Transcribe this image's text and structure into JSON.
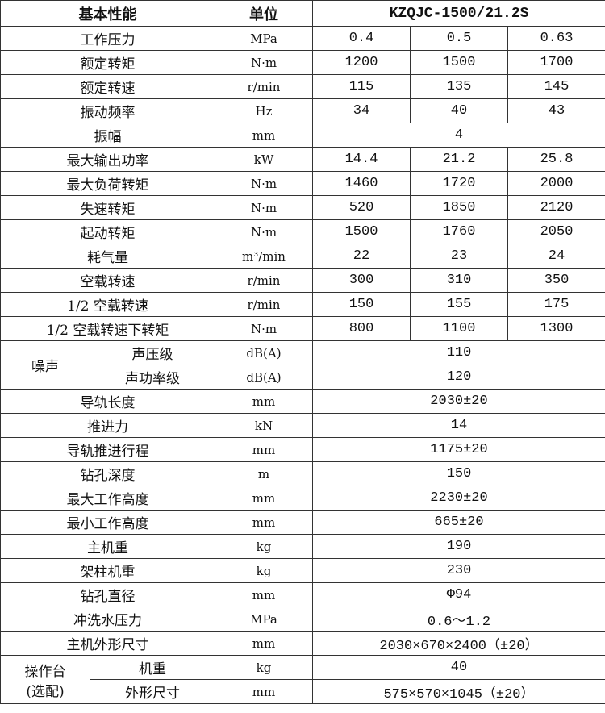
{
  "header": {
    "col1": "基本性能",
    "col2": "单位",
    "col3": "KZQJC-1500/21.2S"
  },
  "rows3": [
    {
      "name": "工作压力",
      "unit": "MPa",
      "values": [
        "0.4",
        "0.5",
        "0.63"
      ]
    },
    {
      "name": "额定转矩",
      "unit": "N·m",
      "values": [
        "1200",
        "1500",
        "1700"
      ]
    },
    {
      "name": "额定转速",
      "unit": "r/min",
      "values": [
        "115",
        "135",
        "145"
      ]
    },
    {
      "name": "振动频率",
      "unit": "Hz",
      "values": [
        "34",
        "40",
        "43"
      ]
    }
  ],
  "amplitude": {
    "name": "振幅",
    "unit": "mm",
    "value": "4"
  },
  "rows3b": [
    {
      "name": "最大输出功率",
      "unit": "kW",
      "values": [
        "14.4",
        "21.2",
        "25.8"
      ]
    },
    {
      "name": "最大负荷转矩",
      "unit": "N·m",
      "values": [
        "1460",
        "1720",
        "2000"
      ]
    },
    {
      "name": "失速转矩",
      "unit": "N·m",
      "values": [
        "520",
        "1850",
        "2120"
      ]
    },
    {
      "name": "起动转矩",
      "unit": "N·m",
      "values": [
        "1500",
        "1760",
        "2050"
      ]
    },
    {
      "name": "耗气量",
      "unit": "m³/min",
      "values": [
        "22",
        "23",
        "24"
      ]
    },
    {
      "name": "空载转速",
      "unit": "r/min",
      "values": [
        "300",
        "310",
        "350"
      ]
    },
    {
      "name": "1/2 空载转速",
      "unit": "r/min",
      "values": [
        "150",
        "155",
        "175"
      ]
    },
    {
      "name": "1/2 空载转速下转矩",
      "unit": "N·m",
      "values": [
        "800",
        "1100",
        "1300"
      ]
    }
  ],
  "noise": {
    "group": "噪声",
    "items": [
      {
        "name": "声压级",
        "unit": "dB(A)",
        "value": "110"
      },
      {
        "name": "声功率级",
        "unit": "dB(A)",
        "value": "120"
      }
    ]
  },
  "rows1": [
    {
      "name": "导轨长度",
      "unit": "mm",
      "value": "2030±20"
    },
    {
      "name": "推进力",
      "unit": "kN",
      "value": "14"
    },
    {
      "name": "导轨推进行程",
      "unit": "mm",
      "value": "1175±20"
    },
    {
      "name": "钻孔深度",
      "unit": "m",
      "value": "150"
    },
    {
      "name": "最大工作高度",
      "unit": "mm",
      "value": "2230±20"
    },
    {
      "name": "最小工作高度",
      "unit": "mm",
      "value": "665±20"
    },
    {
      "name": "主机重",
      "unit": "kg",
      "value": "190"
    },
    {
      "name": "架柱机重",
      "unit": "kg",
      "value": "230"
    },
    {
      "name": "钻孔直径",
      "unit": "mm",
      "value": "Φ94"
    },
    {
      "name": "冲洗水压力",
      "unit": "MPa",
      "value": "0.6～1.2"
    },
    {
      "name": "主机外形尺寸",
      "unit": "mm",
      "value": "2030×670×2400（±20）"
    }
  ],
  "console": {
    "group_line1": "操作台",
    "group_line2": "(选配)",
    "items": [
      {
        "name": "机重",
        "unit": "kg",
        "value": "40"
      },
      {
        "name": "外形尺寸",
        "unit": "mm",
        "value": "575×570×1045（±20）"
      }
    ]
  }
}
